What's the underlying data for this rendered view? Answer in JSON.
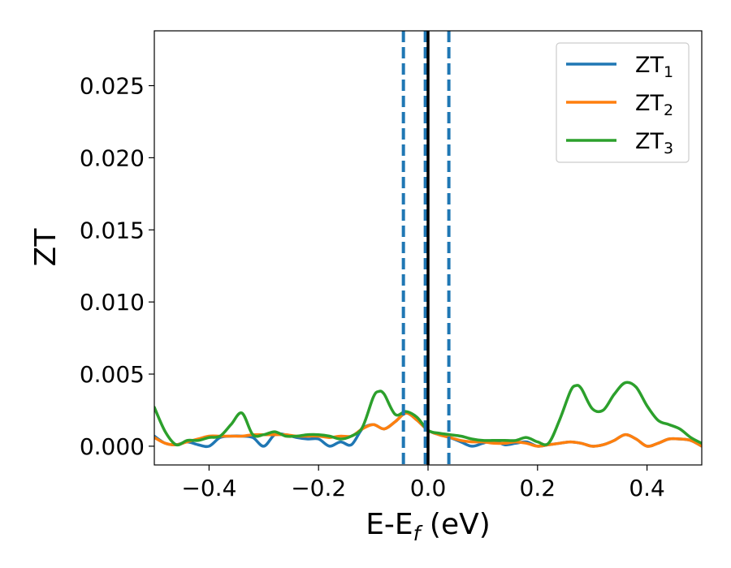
{
  "chart_data": {
    "type": "line",
    "xlabel": "E-E",
    "xlabel_sub": "f",
    "xlabel_unit": " (eV)",
    "ylabel": "ZT",
    "xlim": [
      -0.5,
      0.5
    ],
    "ylim": [
      -0.0013,
      0.0288
    ],
    "xticks": [
      -0.4,
      -0.2,
      0.0,
      0.2,
      0.4
    ],
    "xtick_labels": [
      "−0.4",
      "−0.2",
      "0.0",
      "0.2",
      "0.4"
    ],
    "yticks": [
      0.0,
      0.005,
      0.01,
      0.015,
      0.02,
      0.025
    ],
    "ytick_labels": [
      "0.000",
      "0.005",
      "0.010",
      "0.015",
      "0.020",
      "0.025"
    ],
    "grid": false,
    "legend_position": "top-right",
    "vertical_lines": [
      {
        "x": -0.045,
        "style": "dashed",
        "color": "#1f77b4"
      },
      {
        "x": -0.005,
        "style": "dashed",
        "color": "#1f77b4"
      },
      {
        "x": 0.038,
        "style": "dashed",
        "color": "#1f77b4"
      },
      {
        "x": 0.0,
        "style": "solid",
        "color": "#000000"
      }
    ],
    "series": [
      {
        "name": "ZT",
        "sub": "1",
        "color": "#1f77b4",
        "points": [
          [
            -0.5,
            0.0007
          ],
          [
            -0.48,
            0.0002
          ],
          [
            -0.46,
            0.0001
          ],
          [
            -0.44,
            0.0003
          ],
          [
            -0.42,
            0.0001
          ],
          [
            -0.4,
            0.0
          ],
          [
            -0.38,
            0.0006
          ],
          [
            -0.36,
            0.0007
          ],
          [
            -0.34,
            0.0007
          ],
          [
            -0.32,
            0.0006
          ],
          [
            -0.3,
            0.0
          ],
          [
            -0.28,
            0.0008
          ],
          [
            -0.26,
            0.0008
          ],
          [
            -0.24,
            0.0006
          ],
          [
            -0.22,
            0.0005
          ],
          [
            -0.2,
            0.0005
          ],
          [
            -0.18,
            0.0
          ],
          [
            -0.16,
            0.0003
          ],
          [
            -0.14,
            0.0001
          ],
          [
            -0.12,
            0.0012
          ],
          [
            -0.1,
            0.0015
          ],
          [
            -0.08,
            0.0012
          ],
          [
            -0.06,
            0.0017
          ],
          [
            -0.04,
            0.0023
          ],
          [
            -0.02,
            0.0018
          ],
          [
            0.0,
            0.0011
          ],
          [
            0.02,
            0.0008
          ],
          [
            0.04,
            0.0006
          ],
          [
            0.06,
            0.0003
          ],
          [
            0.08,
            0.0
          ],
          [
            0.1,
            0.0002
          ],
          [
            0.12,
            0.0004
          ],
          [
            0.14,
            0.0001
          ],
          [
            0.16,
            0.0002
          ],
          [
            0.18,
            0.0003
          ],
          [
            0.2,
            0.0
          ],
          [
            0.22,
            0.0001
          ],
          [
            0.24,
            0.0002
          ],
          [
            0.26,
            0.0003
          ],
          [
            0.28,
            0.0002
          ],
          [
            0.3,
            0.0
          ],
          [
            0.32,
            0.0001
          ],
          [
            0.34,
            0.0004
          ],
          [
            0.36,
            0.0008
          ],
          [
            0.38,
            0.0005
          ],
          [
            0.4,
            0.0
          ],
          [
            0.42,
            0.0002
          ],
          [
            0.44,
            0.0005
          ],
          [
            0.46,
            0.0005
          ],
          [
            0.48,
            0.0004
          ],
          [
            0.5,
            0.0
          ]
        ]
      },
      {
        "name": "ZT",
        "sub": "2",
        "color": "#ff7f0e",
        "points": [
          [
            -0.5,
            0.0006
          ],
          [
            -0.48,
            0.0002
          ],
          [
            -0.46,
            0.0001
          ],
          [
            -0.44,
            0.0003
          ],
          [
            -0.42,
            0.0005
          ],
          [
            -0.4,
            0.0007
          ],
          [
            -0.38,
            0.0007
          ],
          [
            -0.36,
            0.0007
          ],
          [
            -0.34,
            0.0007
          ],
          [
            -0.32,
            0.0008
          ],
          [
            -0.3,
            0.0008
          ],
          [
            -0.28,
            0.0008
          ],
          [
            -0.26,
            0.0008
          ],
          [
            -0.24,
            0.0007
          ],
          [
            -0.22,
            0.0007
          ],
          [
            -0.2,
            0.0007
          ],
          [
            -0.18,
            0.0006
          ],
          [
            -0.16,
            0.0007
          ],
          [
            -0.14,
            0.0007
          ],
          [
            -0.12,
            0.0012
          ],
          [
            -0.1,
            0.0015
          ],
          [
            -0.08,
            0.0012
          ],
          [
            -0.06,
            0.0017
          ],
          [
            -0.04,
            0.0023
          ],
          [
            -0.02,
            0.0018
          ],
          [
            0.0,
            0.0011
          ],
          [
            0.02,
            0.0008
          ],
          [
            0.04,
            0.0006
          ],
          [
            0.06,
            0.0004
          ],
          [
            0.08,
            0.0003
          ],
          [
            0.1,
            0.0003
          ],
          [
            0.12,
            0.0002
          ],
          [
            0.14,
            0.0002
          ],
          [
            0.16,
            0.0003
          ],
          [
            0.18,
            0.0002
          ],
          [
            0.2,
            0.0
          ],
          [
            0.22,
            0.0001
          ],
          [
            0.24,
            0.0002
          ],
          [
            0.26,
            0.0003
          ],
          [
            0.28,
            0.0002
          ],
          [
            0.3,
            0.0
          ],
          [
            0.32,
            0.0001
          ],
          [
            0.34,
            0.0004
          ],
          [
            0.36,
            0.0008
          ],
          [
            0.38,
            0.0005
          ],
          [
            0.4,
            0.0
          ],
          [
            0.42,
            0.0002
          ],
          [
            0.44,
            0.0005
          ],
          [
            0.46,
            0.0005
          ],
          [
            0.48,
            0.0004
          ],
          [
            0.5,
            0.0
          ]
        ]
      },
      {
        "name": "ZT",
        "sub": "3",
        "color": "#2ca02c",
        "points": [
          [
            -0.5,
            0.0027
          ],
          [
            -0.48,
            0.001
          ],
          [
            -0.46,
            0.0001
          ],
          [
            -0.44,
            0.0004
          ],
          [
            -0.42,
            0.0004
          ],
          [
            -0.4,
            0.0006
          ],
          [
            -0.38,
            0.0007
          ],
          [
            -0.36,
            0.0015
          ],
          [
            -0.34,
            0.0023
          ],
          [
            -0.32,
            0.0008
          ],
          [
            -0.3,
            0.0008
          ],
          [
            -0.28,
            0.001
          ],
          [
            -0.26,
            0.0007
          ],
          [
            -0.24,
            0.0007
          ],
          [
            -0.22,
            0.0008
          ],
          [
            -0.2,
            0.0008
          ],
          [
            -0.18,
            0.0007
          ],
          [
            -0.16,
            0.0005
          ],
          [
            -0.14,
            0.0007
          ],
          [
            -0.12,
            0.0013
          ],
          [
            -0.1,
            0.0034
          ],
          [
            -0.09,
            0.0038
          ],
          [
            -0.08,
            0.0036
          ],
          [
            -0.06,
            0.0022
          ],
          [
            -0.04,
            0.0024
          ],
          [
            -0.02,
            0.002
          ],
          [
            0.0,
            0.0011
          ],
          [
            0.02,
            0.0009
          ],
          [
            0.04,
            0.0008
          ],
          [
            0.06,
            0.0007
          ],
          [
            0.08,
            0.0005
          ],
          [
            0.1,
            0.0004
          ],
          [
            0.12,
            0.0004
          ],
          [
            0.14,
            0.0004
          ],
          [
            0.16,
            0.0004
          ],
          [
            0.18,
            0.0006
          ],
          [
            0.2,
            0.0003
          ],
          [
            0.22,
            0.0002
          ],
          [
            0.24,
            0.0018
          ],
          [
            0.26,
            0.0038
          ],
          [
            0.27,
            0.0042
          ],
          [
            0.28,
            0.004
          ],
          [
            0.3,
            0.0026
          ],
          [
            0.32,
            0.0025
          ],
          [
            0.34,
            0.0036
          ],
          [
            0.36,
            0.0044
          ],
          [
            0.38,
            0.0041
          ],
          [
            0.4,
            0.0028
          ],
          [
            0.42,
            0.0018
          ],
          [
            0.44,
            0.0015
          ],
          [
            0.46,
            0.0012
          ],
          [
            0.48,
            0.0006
          ],
          [
            0.5,
            0.0002
          ]
        ]
      }
    ]
  }
}
